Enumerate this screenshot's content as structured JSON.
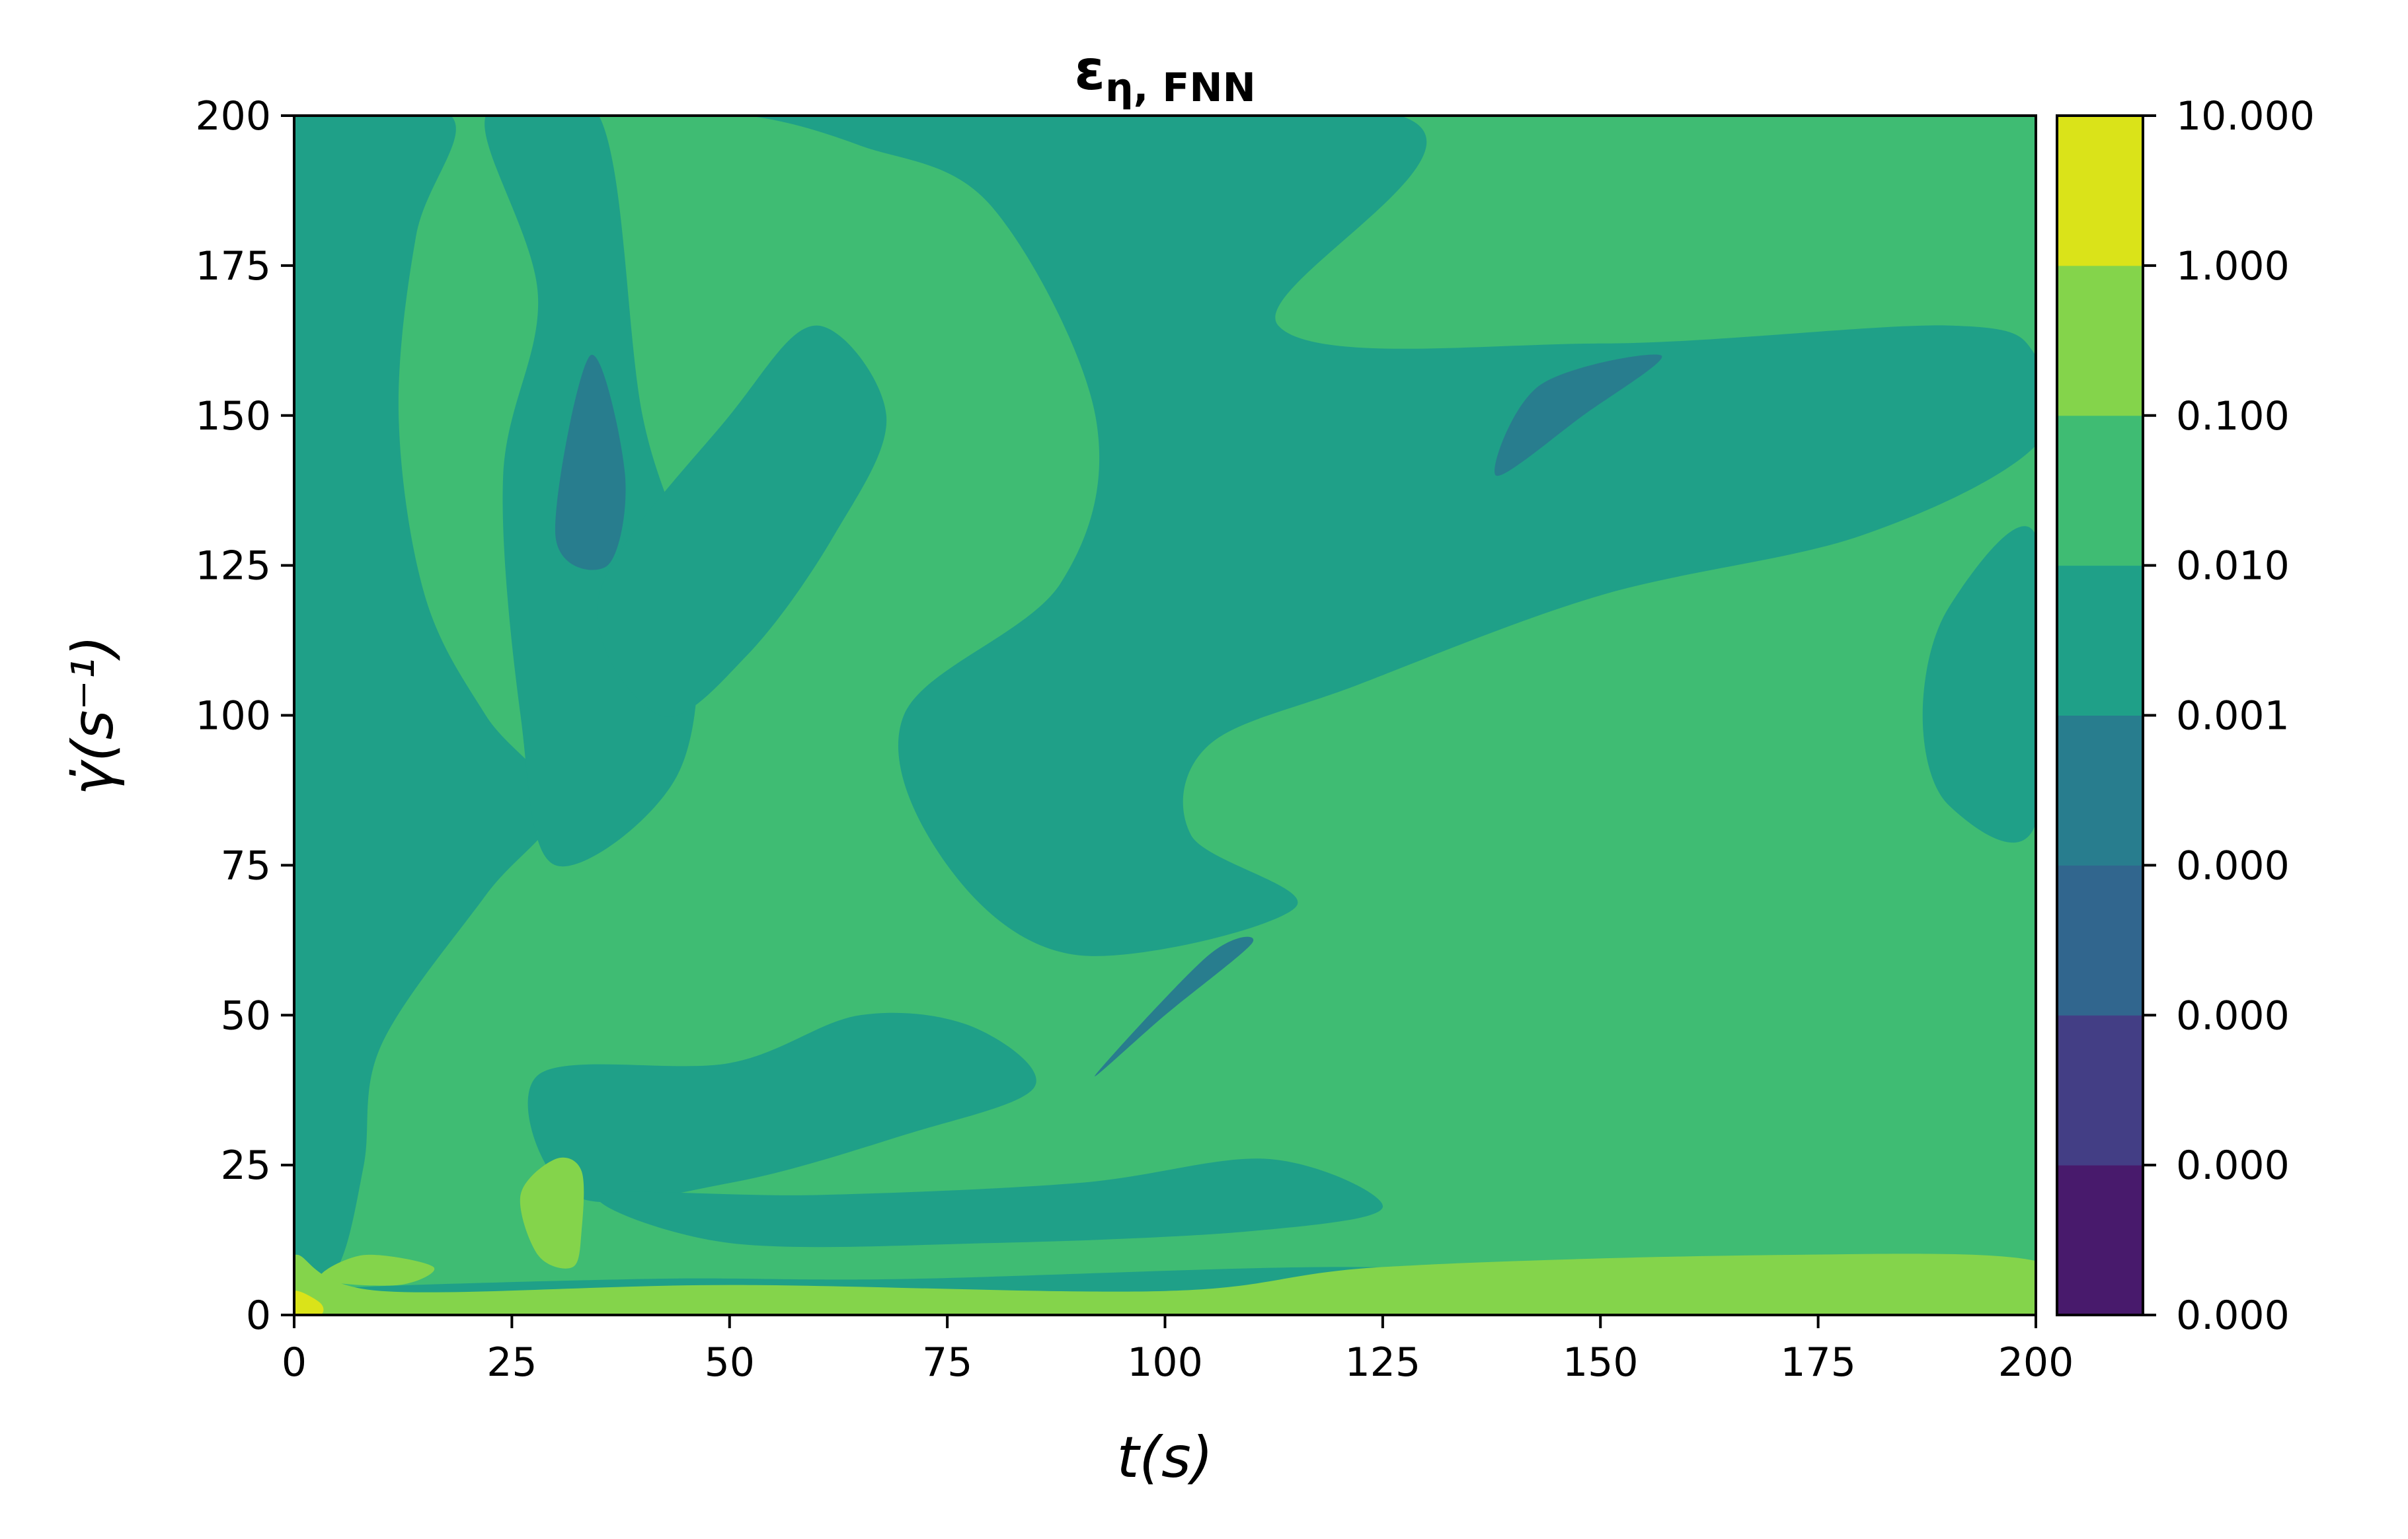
{
  "chart_data": {
    "type": "heatmap",
    "subtype": "filled-contour",
    "title": "ε",
    "title_subscript": "η, FNN",
    "xlabel": "t(s)",
    "ylabel": "γ̇(s⁻¹)",
    "xlim": [
      0,
      200
    ],
    "ylim": [
      0,
      200
    ],
    "xticks": [
      "0",
      "25",
      "50",
      "75",
      "100",
      "125",
      "150",
      "175",
      "200"
    ],
    "yticks": [
      "0",
      "25",
      "50",
      "75",
      "100",
      "125",
      "150",
      "175",
      "200"
    ],
    "grid": false,
    "colormap": "viridis",
    "colorbar": {
      "levels": [
        "0.000",
        "0.000",
        "0.000",
        "0.000",
        "0.001",
        "0.010",
        "0.100",
        "1.000",
        "10.000"
      ],
      "colors": [
        "#481a6c",
        "#433e85",
        "#31668e",
        "#287d8e",
        "#1fa088",
        "#3fbc73",
        "#84d44b",
        "#dae319"
      ]
    },
    "regions": [
      {
        "level": "0.01-0.1",
        "color": "#3fbc73",
        "points": [
          [
            0,
            0
          ],
          [
            200,
            0
          ],
          [
            200,
            200
          ],
          [
            0,
            200
          ]
        ]
      },
      {
        "level": "0.001-0.01",
        "color": "#1fa088",
        "points": [
          [
            38,
            200
          ],
          [
            127,
            200
          ],
          [
            113,
            165
          ],
          [
            150,
            162
          ],
          [
            190,
            165
          ],
          [
            200,
            160
          ],
          [
            200,
            145
          ],
          [
            180,
            130
          ],
          [
            150,
            120
          ],
          [
            122,
            105
          ],
          [
            105,
            95
          ],
          [
            103,
            80
          ],
          [
            115,
            68
          ],
          [
            90,
            60
          ],
          [
            75,
            75
          ],
          [
            70,
            100
          ],
          [
            88,
            122
          ],
          [
            92,
            150
          ],
          [
            80,
            185
          ],
          [
            65,
            195
          ],
          [
            52,
            200
          ]
        ]
      },
      {
        "level": "0.001-0.01",
        "color": "#1fa088",
        "points": [
          [
            200,
            130
          ],
          [
            190,
            118
          ],
          [
            187,
            100
          ],
          [
            190,
            85
          ],
          [
            200,
            82
          ]
        ]
      },
      {
        "level": "0.001-0.01",
        "color": "#1fa088",
        "points": [
          [
            0,
            200
          ],
          [
            18,
            200
          ],
          [
            14,
            180
          ],
          [
            12,
            150
          ],
          [
            15,
            120
          ],
          [
            22,
            100
          ],
          [
            30,
            85
          ],
          [
            22,
            70
          ],
          [
            10,
            45
          ],
          [
            8,
            25
          ],
          [
            5,
            8
          ],
          [
            0,
            5
          ]
        ]
      },
      {
        "level": "0.001-0.01",
        "color": "#1fa088",
        "points": [
          [
            22,
            200
          ],
          [
            35,
            200
          ],
          [
            40,
            150
          ],
          [
            46,
            120
          ],
          [
            44,
            90
          ],
          [
            30,
            75
          ],
          [
            26,
            100
          ],
          [
            24,
            140
          ],
          [
            28,
            170
          ]
        ]
      },
      {
        "level": "0.001-0.01",
        "color": "#1fa088",
        "points": [
          [
            28,
            40
          ],
          [
            50,
            42
          ],
          [
            65,
            50
          ],
          [
            78,
            48
          ],
          [
            85,
            38
          ],
          [
            70,
            30
          ],
          [
            50,
            22
          ],
          [
            32,
            20
          ]
        ]
      },
      {
        "level": "0.001-0.01",
        "color": "#1fa088",
        "points": [
          [
            35,
            120
          ],
          [
            50,
            150
          ],
          [
            60,
            165
          ],
          [
            68,
            150
          ],
          [
            62,
            130
          ],
          [
            52,
            110
          ],
          [
            42,
            100
          ]
        ]
      },
      {
        "level": "0.001-0.01",
        "color": "#1fa088",
        "points": [
          [
            35,
            20
          ],
          [
            60,
            20
          ],
          [
            90,
            22
          ],
          [
            112,
            26
          ],
          [
            125,
            18
          ],
          [
            110,
            14
          ],
          [
            80,
            12
          ],
          [
            50,
            12
          ]
        ]
      },
      {
        "level": "0.001-0.01",
        "color": "#1fa088",
        "points": [
          [
            0,
            4
          ],
          [
            40,
            6
          ],
          [
            70,
            6
          ],
          [
            120,
            8
          ],
          [
            150,
            6
          ],
          [
            130,
            2
          ],
          [
            80,
            2
          ],
          [
            30,
            2
          ]
        ]
      },
      {
        "level": "0.0001-0.001",
        "color": "#287d8e",
        "points": [
          [
            138,
            140
          ],
          [
            143,
            155
          ],
          [
            157,
            160
          ],
          [
            148,
            150
          ]
        ]
      },
      {
        "level": "0.0001-0.001",
        "color": "#287d8e",
        "points": [
          [
            92,
            40
          ],
          [
            105,
            60
          ],
          [
            110,
            62
          ],
          [
            100,
            50
          ]
        ]
      },
      {
        "level": "0.0001-0.001",
        "color": "#287d8e",
        "points": [
          [
            30,
            130
          ],
          [
            34,
            160
          ],
          [
            38,
            140
          ],
          [
            36,
            125
          ]
        ]
      },
      {
        "level": "0.1-1",
        "color": "#84d44b",
        "points": [
          [
            3,
            6
          ],
          [
            8,
            10
          ],
          [
            16,
            8
          ],
          [
            12,
            5
          ]
        ]
      },
      {
        "level": "0.1-1",
        "color": "#84d44b",
        "points": [
          [
            26,
            20
          ],
          [
            30,
            26
          ],
          [
            33,
            24
          ],
          [
            33,
            14
          ],
          [
            32,
            8
          ],
          [
            28,
            10
          ]
        ]
      },
      {
        "level": "0.1-1",
        "color": "#84d44b",
        "points": [
          [
            0,
            0
          ],
          [
            200,
            0
          ],
          [
            200,
            9
          ],
          [
            170,
            10
          ],
          [
            125,
            8
          ],
          [
            100,
            4
          ],
          [
            50,
            5
          ],
          [
            10,
            4
          ],
          [
            0,
            10
          ]
        ]
      },
      {
        "level": "1-10",
        "color": "#dae319",
        "points": [
          [
            0,
            0
          ],
          [
            3,
            0
          ],
          [
            3,
            2
          ],
          [
            0,
            4
          ]
        ]
      }
    ]
  }
}
